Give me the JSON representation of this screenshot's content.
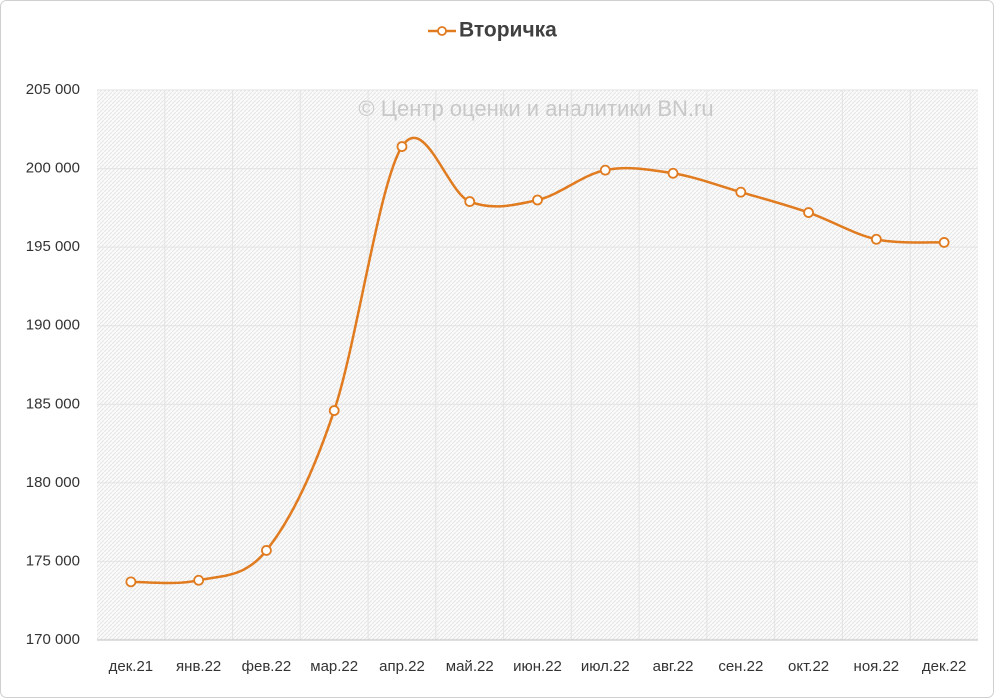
{
  "chart_data": {
    "type": "line",
    "watermark": "© Центр оценки и аналитики BN.ru",
    "legend": "top",
    "grid": true,
    "smooth": true,
    "categories": [
      "дек.21",
      "янв.22",
      "фев.22",
      "мар.22",
      "апр.22",
      "май.22",
      "июн.22",
      "июл.22",
      "авг.22",
      "сен.22",
      "окт.22",
      "ноя.22",
      "дек.22"
    ],
    "series": [
      {
        "name": "Вторичка",
        "color": "#e07b20",
        "values": [
          173700,
          173800,
          175700,
          184600,
          201400,
          197900,
          198000,
          199900,
          199700,
          198500,
          197200,
          195500,
          195300
        ]
      }
    ],
    "ylim": [
      170000,
      205000
    ],
    "yticks": [
      {
        "value": 170000,
        "label": "170 000"
      },
      {
        "value": 175000,
        "label": "175 000"
      },
      {
        "value": 180000,
        "label": "180 000"
      },
      {
        "value": 185000,
        "label": "185 000"
      },
      {
        "value": 190000,
        "label": "190 000"
      },
      {
        "value": 195000,
        "label": "195 000"
      },
      {
        "value": 200000,
        "label": "200 000"
      },
      {
        "value": 205000,
        "label": "205 000"
      }
    ]
  }
}
